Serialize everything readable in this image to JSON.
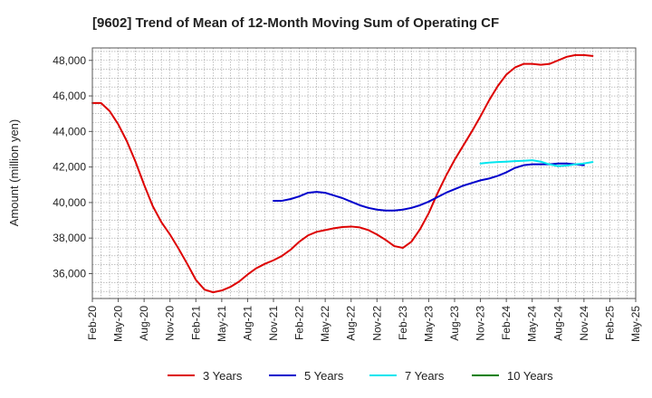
{
  "chart_data": {
    "type": "line",
    "title": "[9602]  Trend of Mean of 12-Month Moving Sum of Operating CF",
    "xlabel": "",
    "ylabel": "Amount (million yen)",
    "ylim": [
      34600,
      48700
    ],
    "yticks": [
      36000,
      38000,
      40000,
      42000,
      44000,
      46000,
      48000
    ],
    "ytick_labels": [
      "36,000",
      "38,000",
      "40,000",
      "42,000",
      "44,000",
      "46,000",
      "48,000"
    ],
    "xticks": [
      "Feb-20",
      "May-20",
      "Aug-20",
      "Nov-20",
      "Feb-21",
      "May-21",
      "Aug-21",
      "Nov-21",
      "Feb-22",
      "May-22",
      "Aug-22",
      "Nov-22",
      "Feb-23",
      "May-23",
      "Aug-23",
      "Nov-23",
      "Feb-24",
      "May-24",
      "Aug-24",
      "Nov-24",
      "Feb-25",
      "May-25"
    ],
    "x_start": "Feb-20",
    "grid": true,
    "legend_position": "bottom",
    "series": [
      {
        "name": "3 Years",
        "color": "#dd0000",
        "start_index": 0,
        "values": [
          45600,
          45600,
          45150,
          44400,
          43450,
          42300,
          41000,
          39800,
          38900,
          38200,
          37400,
          36550,
          35650,
          35100,
          34950,
          35050,
          35250,
          35550,
          35950,
          36300,
          36550,
          36750,
          37000,
          37350,
          37800,
          38150,
          38350,
          38450,
          38550,
          38620,
          38650,
          38600,
          38450,
          38200,
          37900,
          37550,
          37450,
          37800,
          38500,
          39400,
          40500,
          41500,
          42400,
          43200,
          44000,
          44850,
          45750,
          46550,
          47200,
          47600,
          47800,
          47800,
          47750,
          47800,
          48000,
          48200,
          48300,
          48300,
          48250
        ]
      },
      {
        "name": "5 Years",
        "color": "#0000cc",
        "start_index": 21,
        "values": [
          40100,
          40100,
          40200,
          40350,
          40550,
          40600,
          40550,
          40400,
          40250,
          40050,
          39850,
          39700,
          39600,
          39550,
          39550,
          39600,
          39700,
          39850,
          40050,
          40300,
          40550,
          40750,
          40950,
          41100,
          41250,
          41350,
          41500,
          41700,
          41950,
          42100,
          42150,
          42150,
          42150,
          42200,
          42200,
          42150,
          42100
        ]
      },
      {
        "name": "7 Years",
        "color": "#00e5ee",
        "start_index": 45,
        "values": [
          42200,
          42250,
          42280,
          42300,
          42330,
          42350,
          42380,
          42300,
          42150,
          42050,
          42080,
          42150,
          42200,
          42280
        ]
      },
      {
        "name": "10 Years",
        "color": "#008000",
        "start_index": 0,
        "values": []
      }
    ]
  }
}
